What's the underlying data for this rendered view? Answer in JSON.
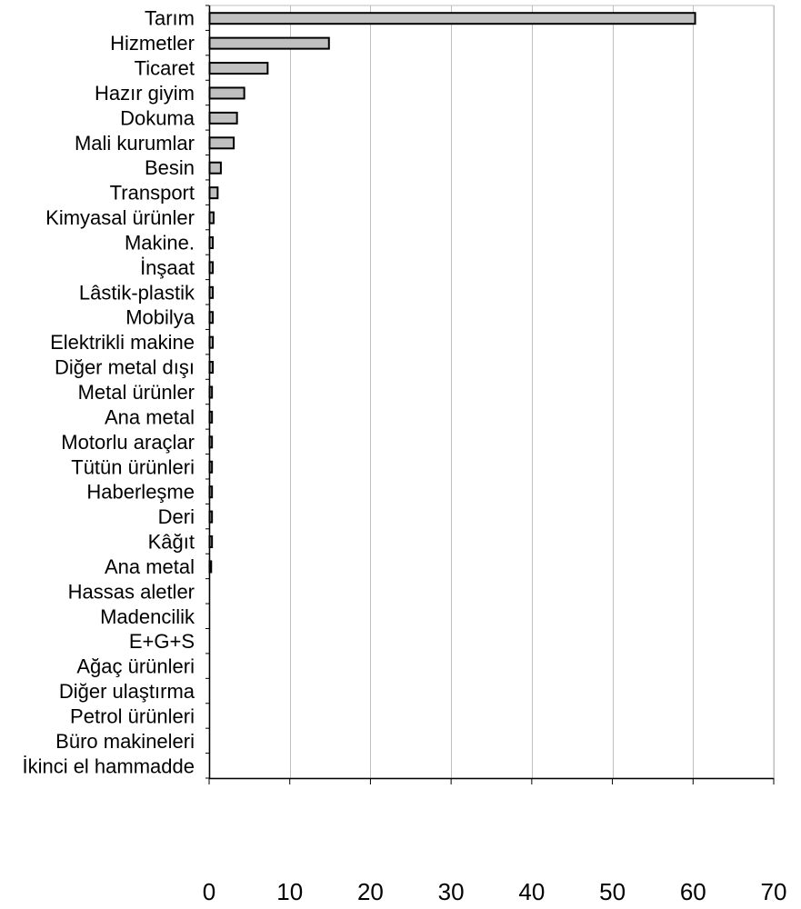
{
  "chart_data": {
    "type": "bar",
    "orientation": "horizontal",
    "title": "",
    "xlabel": "",
    "ylabel": "",
    "xlim": [
      0,
      70
    ],
    "xticks": [
      0,
      10,
      20,
      30,
      40,
      50,
      60,
      70
    ],
    "grid": "vertical",
    "legend": "none",
    "bar_color": "#c0c0c0",
    "bar_edge_color": "#000000",
    "grid_color": "#bfbfbf",
    "categories": [
      "Tarım",
      "Hizmetler",
      "Ticaret",
      "Hazır giyim",
      "Dokuma",
      "Mali kurumlar",
      "Besin",
      "Transport",
      "Kimyasal ürünler",
      "Makine.",
      "İnşaat",
      "Lâstik-plastik",
      "Mobilya",
      "Elektrikli makine",
      "Diğer metal dışı",
      "Metal ürünler",
      "Ana metal",
      "Motorlu araçlar",
      "Tütün ürünleri",
      "Haberleşme",
      "Deri",
      "Kâğıt",
      "Ana metal",
      "Hassas aletler",
      "Madencilik",
      "E+G+S",
      "Ağaç ürünleri",
      "Diğer ulaştırma",
      "Petrol ürünleri",
      "Büro makineleri",
      "İkinci el hammadde"
    ],
    "values": [
      60.2,
      14.8,
      7.2,
      4.3,
      3.4,
      3.0,
      1.4,
      1.0,
      0.5,
      0.4,
      0.4,
      0.4,
      0.4,
      0.4,
      0.4,
      0.3,
      0.3,
      0.3,
      0.3,
      0.3,
      0.3,
      0.3,
      0.2,
      0,
      0,
      0,
      0,
      0,
      0,
      0,
      0
    ]
  }
}
